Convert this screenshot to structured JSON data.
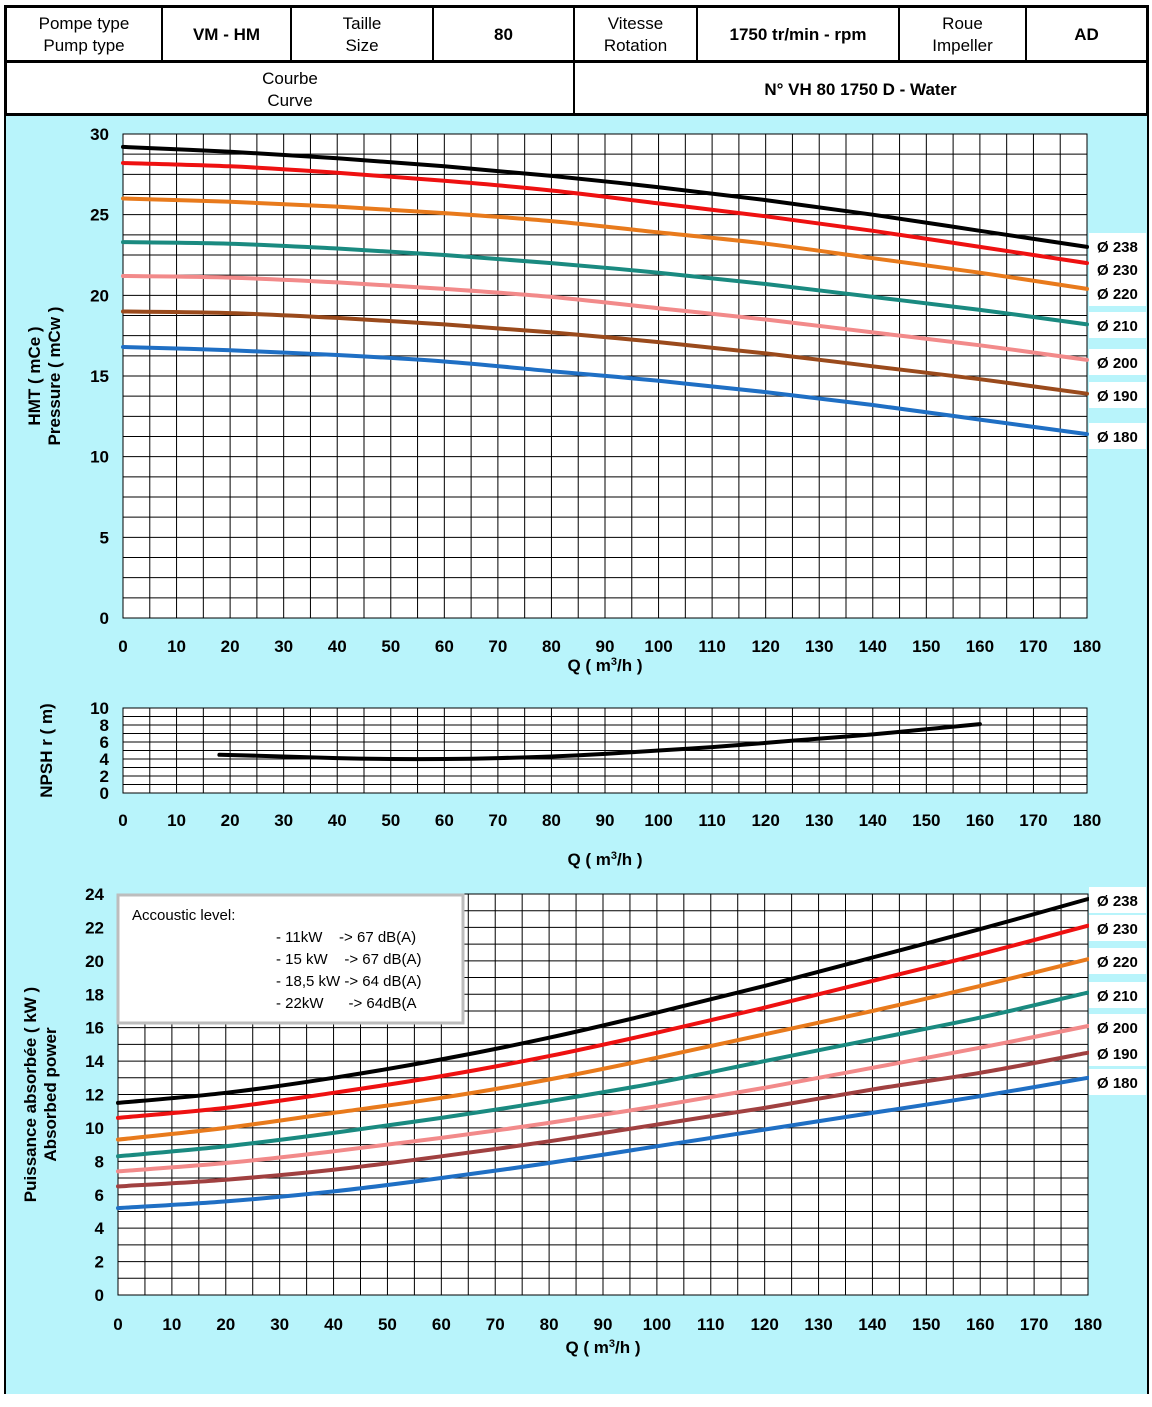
{
  "header": {
    "pump_type_label_fr": "Pompe type",
    "pump_type_label_en": "Pump type",
    "pump_type_value": "VM - HM",
    "size_label_fr": "Taille",
    "size_label_en": "Size",
    "size_value": "80",
    "rotation_label_fr": "Vitesse",
    "rotation_label_en": "Rotation",
    "rotation_value": "1750 tr/min - rpm",
    "impeller_label_fr": "Roue",
    "impeller_label_en": "Impeller",
    "impeller_value": "AD",
    "curve_label_fr": "Courbe",
    "curve_label_en": "Curve",
    "curve_value": "N° VH 80 1750 D - Water"
  },
  "acoustic": {
    "title": "Accoustic level:",
    "lines": [
      "- 11kW    -> 67 dB(A)",
      "- 15 kW    -> 67 dB(A)",
      "- 18,5 kW -> 64 dB(A)",
      "- 22kW      -> 64dB(A"
    ]
  },
  "colors": {
    "background": "#b8f4fb",
    "d238": "#000000",
    "d230": "#ee1111",
    "d220": "#e87a1c",
    "d210": "#1a8a80",
    "d200": "#f28a8a",
    "d190": "#9a4a1c",
    "d190_power": "#a04040",
    "d180": "#1f6fc4",
    "npsh": "#000000"
  },
  "chart_data": [
    {
      "type": "line",
      "xlabel": "Q ( m³/h )",
      "ylabel": [
        "HMT ( mCe )",
        "Pressure ( mCw )"
      ],
      "xlim": [
        0,
        180
      ],
      "ylim": [
        0,
        30
      ],
      "xticks": [
        "0",
        "10",
        "20",
        "30",
        "40",
        "50",
        "60",
        "70",
        "80",
        "90",
        "100",
        "110",
        "120",
        "130",
        "140",
        "150",
        "160",
        "170",
        "180"
      ],
      "yticks": [
        "0",
        "5",
        "10",
        "15",
        "20",
        "25",
        "30"
      ],
      "grid": true,
      "legend": "right",
      "x": [
        0,
        20,
        40,
        60,
        80,
        100,
        120,
        140,
        160,
        180
      ],
      "series": [
        {
          "name": "Ø 238",
          "color_key": "d238",
          "values": [
            29.2,
            28.9,
            28.5,
            28.0,
            27.4,
            26.7,
            25.9,
            25.0,
            24.0,
            23.0
          ]
        },
        {
          "name": "Ø 230",
          "color_key": "d230",
          "values": [
            28.2,
            28.0,
            27.6,
            27.1,
            26.5,
            25.7,
            24.9,
            24.0,
            23.0,
            22.0
          ]
        },
        {
          "name": "Ø 220",
          "color_key": "d220",
          "values": [
            26.0,
            25.8,
            25.5,
            25.1,
            24.6,
            23.9,
            23.2,
            22.3,
            21.4,
            20.4
          ]
        },
        {
          "name": "Ø 210",
          "color_key": "d210",
          "values": [
            23.3,
            23.2,
            22.9,
            22.5,
            22.0,
            21.4,
            20.7,
            19.9,
            19.1,
            18.2
          ]
        },
        {
          "name": "Ø 200",
          "color_key": "d200",
          "values": [
            21.2,
            21.1,
            20.8,
            20.4,
            19.9,
            19.2,
            18.5,
            17.7,
            16.9,
            16.0
          ]
        },
        {
          "name": "Ø 190",
          "color_key": "d190",
          "values": [
            19.0,
            18.9,
            18.6,
            18.2,
            17.7,
            17.1,
            16.4,
            15.6,
            14.8,
            13.9
          ]
        },
        {
          "name": "Ø 180",
          "color_key": "d180",
          "values": [
            16.8,
            16.6,
            16.3,
            15.9,
            15.3,
            14.7,
            14.0,
            13.2,
            12.3,
            11.4
          ]
        }
      ]
    },
    {
      "type": "line",
      "xlabel": "Q ( m³/h )",
      "ylabel": "NPSH r ( m)",
      "xlim": [
        0,
        180
      ],
      "ylim": [
        0,
        10
      ],
      "xticks": [
        "0",
        "10",
        "20",
        "30",
        "40",
        "50",
        "60",
        "70",
        "80",
        "90",
        "100",
        "110",
        "120",
        "130",
        "140",
        "150",
        "160",
        "170",
        "180"
      ],
      "yticks": [
        "0",
        "2",
        "4",
        "6",
        "8",
        "10"
      ],
      "grid": true,
      "x": [
        18,
        30,
        40,
        50,
        60,
        70,
        80,
        90,
        100,
        110,
        120,
        130,
        140,
        150,
        160
      ],
      "series": [
        {
          "name": "",
          "color_key": "npsh",
          "values": [
            4.5,
            4.3,
            4.1,
            4.0,
            4.0,
            4.1,
            4.3,
            4.6,
            5.0,
            5.4,
            5.9,
            6.4,
            6.9,
            7.5,
            8.1
          ]
        }
      ]
    },
    {
      "type": "line",
      "xlabel": "Q ( m³/h )",
      "ylabel": [
        "Puissance absorbée ( kW )",
        "Absorbed power"
      ],
      "xlim": [
        0,
        180
      ],
      "ylim": [
        0,
        24
      ],
      "xticks": [
        "0",
        "10",
        "20",
        "30",
        "40",
        "50",
        "60",
        "70",
        "80",
        "90",
        "100",
        "110",
        "120",
        "130",
        "140",
        "150",
        "160",
        "170",
        "180"
      ],
      "yticks": [
        "0",
        "2",
        "4",
        "6",
        "8",
        "10",
        "12",
        "14",
        "16",
        "18",
        "20",
        "22",
        "24"
      ],
      "grid": true,
      "legend": "right",
      "x": [
        0,
        20,
        40,
        60,
        80,
        100,
        120,
        140,
        160,
        180
      ],
      "series": [
        {
          "name": "Ø 238",
          "color_key": "d238",
          "values": [
            11.5,
            12.1,
            13.0,
            14.1,
            15.4,
            16.9,
            18.5,
            20.2,
            21.9,
            23.7
          ]
        },
        {
          "name": "Ø 230",
          "color_key": "d230",
          "values": [
            10.6,
            11.2,
            12.1,
            13.1,
            14.3,
            15.7,
            17.2,
            18.8,
            20.4,
            22.1
          ]
        },
        {
          "name": "Ø 220",
          "color_key": "d220",
          "values": [
            9.3,
            10.0,
            10.9,
            11.8,
            12.9,
            14.2,
            15.6,
            17.0,
            18.5,
            20.1
          ]
        },
        {
          "name": "Ø 210",
          "color_key": "d210",
          "values": [
            8.3,
            8.9,
            9.7,
            10.6,
            11.6,
            12.7,
            14.0,
            15.3,
            16.6,
            18.1
          ]
        },
        {
          "name": "Ø 200",
          "color_key": "d200",
          "values": [
            7.4,
            7.9,
            8.6,
            9.4,
            10.3,
            11.3,
            12.4,
            13.6,
            14.8,
            16.1
          ]
        },
        {
          "name": "Ø 190",
          "color_key": "d190_power",
          "values": [
            6.5,
            6.9,
            7.5,
            8.3,
            9.2,
            10.2,
            11.2,
            12.3,
            13.3,
            14.5
          ]
        },
        {
          "name": "Ø 180",
          "color_key": "d180",
          "values": [
            5.2,
            5.6,
            6.2,
            7.0,
            7.9,
            8.9,
            9.9,
            10.9,
            11.9,
            13.0
          ]
        }
      ]
    }
  ]
}
